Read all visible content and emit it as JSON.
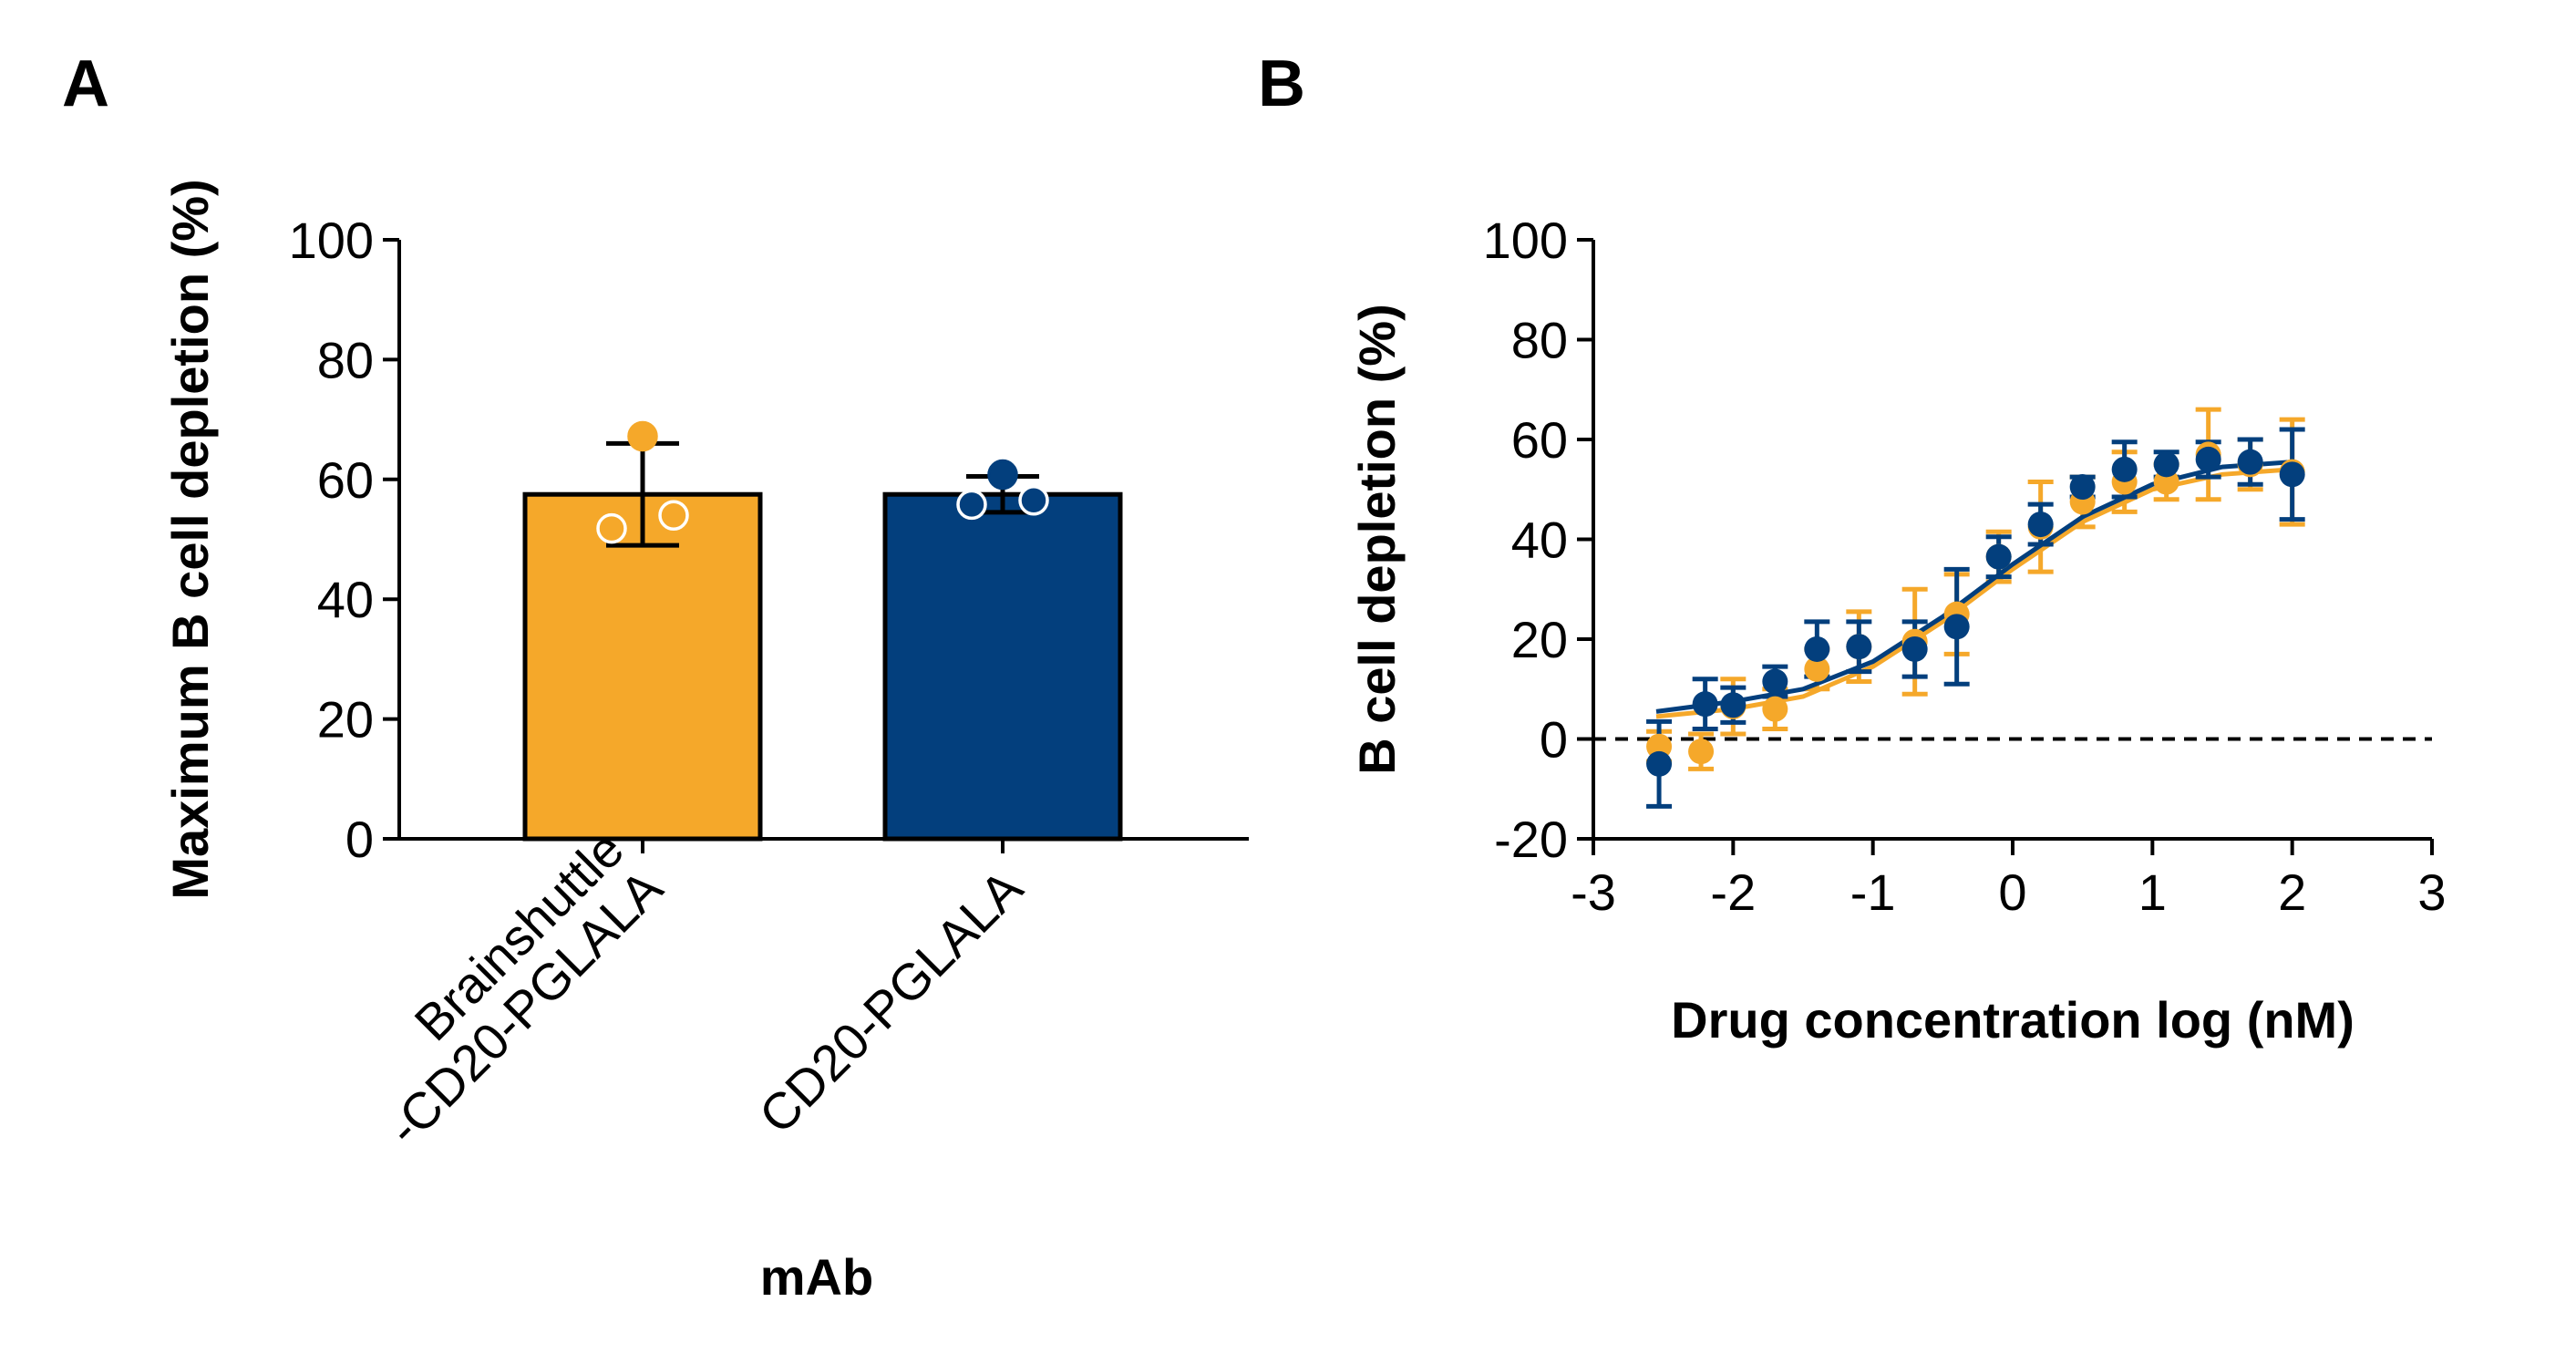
{
  "panels": {
    "a": "A",
    "b": "B"
  },
  "colors": {
    "orange": "#f5a82a",
    "navy": "#033f7d",
    "axis": "#000000"
  },
  "chart_data": [
    {
      "type": "bar",
      "panel": "A",
      "xlabel": "mAb",
      "ylabel": "Maximum B cell depletion (%)",
      "ylim": [
        0,
        100
      ],
      "yticks": [
        0,
        20,
        40,
        60,
        80,
        100
      ],
      "categories": [
        "Brainshuttle\n-CD20-PGLALA",
        "CD20-PGLALA"
      ],
      "bars": [
        {
          "category": "Brainshuttle\n-CD20-PGLALA",
          "mean": 57.5,
          "sd": 8.5,
          "color": "#f5a82a",
          "points": [
            67.2,
            51.8,
            54.0
          ]
        },
        {
          "category": "CD20-PGLALA",
          "mean": 57.5,
          "sd": 3.0,
          "color": "#033f7d",
          "points": [
            60.8,
            55.8,
            56.5
          ]
        }
      ],
      "grid": false
    },
    {
      "type": "scatter",
      "panel": "B",
      "xlabel": "Drug concentration log (nM)",
      "ylabel": "B cell depletion (%)",
      "xlim": [
        -3,
        3
      ],
      "ylim": [
        -20,
        100
      ],
      "xticks": [
        -3,
        -2,
        -1,
        0,
        1,
        2,
        3
      ],
      "yticks": [
        -20,
        0,
        20,
        40,
        60,
        80,
        100
      ],
      "reference_line_y": 0,
      "grid": false,
      "series": [
        {
          "color": "#f5a82a",
          "x": [
            -2.53,
            -2.23,
            -2.0,
            -1.7,
            -1.4,
            -1.1,
            -0.7,
            -0.4,
            -0.1,
            0.2,
            0.5,
            0.8,
            1.1,
            1.4,
            1.7,
            2.0
          ],
          "y": [
            -1.5,
            -2.5,
            6.5,
            6.0,
            14.0,
            18.5,
            19.5,
            25.0,
            36.5,
            42.5,
            47.5,
            51.5,
            51.5,
            57.0,
            55.0,
            53.5
          ],
          "err": [
            3.0,
            3.5,
            5.5,
            4.0,
            4.0,
            7.0,
            10.5,
            8.0,
            5.0,
            9.0,
            5.0,
            6.0,
            3.5,
            9.0,
            5.0,
            10.5
          ],
          "fit": [
            [
              -2.55,
              4.5
            ],
            [
              -2.0,
              6.0
            ],
            [
              -1.5,
              8.5
            ],
            [
              -1.0,
              14.5
            ],
            [
              -0.5,
              23.5
            ],
            [
              0.0,
              34.0
            ],
            [
              0.5,
              43.5
            ],
            [
              1.0,
              50.0
            ],
            [
              1.5,
              53.0
            ],
            [
              2.0,
              54.0
            ]
          ]
        },
        {
          "color": "#033f7d",
          "x": [
            -2.53,
            -2.2,
            -2.0,
            -1.7,
            -1.4,
            -1.1,
            -0.7,
            -0.4,
            -0.1,
            0.2,
            0.5,
            0.8,
            1.1,
            1.4,
            1.7,
            2.0
          ],
          "y": [
            -5.0,
            7.0,
            6.8,
            11.5,
            18.0,
            18.5,
            18.0,
            22.5,
            36.5,
            43.0,
            50.5,
            54.0,
            55.0,
            56.0,
            55.5,
            53.0
          ],
          "err": [
            8.5,
            5.0,
            3.5,
            3.0,
            5.5,
            5.0,
            5.5,
            11.5,
            4.0,
            4.0,
            2.0,
            5.5,
            2.5,
            3.5,
            4.5,
            9.0
          ],
          "fit": [
            [
              -2.55,
              5.5
            ],
            [
              -2.0,
              7.5
            ],
            [
              -1.5,
              10.0
            ],
            [
              -1.0,
              15.5
            ],
            [
              -0.5,
              24.5
            ],
            [
              0.0,
              35.0
            ],
            [
              0.5,
              44.5
            ],
            [
              1.0,
              51.0
            ],
            [
              1.5,
              54.5
            ],
            [
              2.0,
              55.5
            ]
          ]
        }
      ]
    }
  ]
}
